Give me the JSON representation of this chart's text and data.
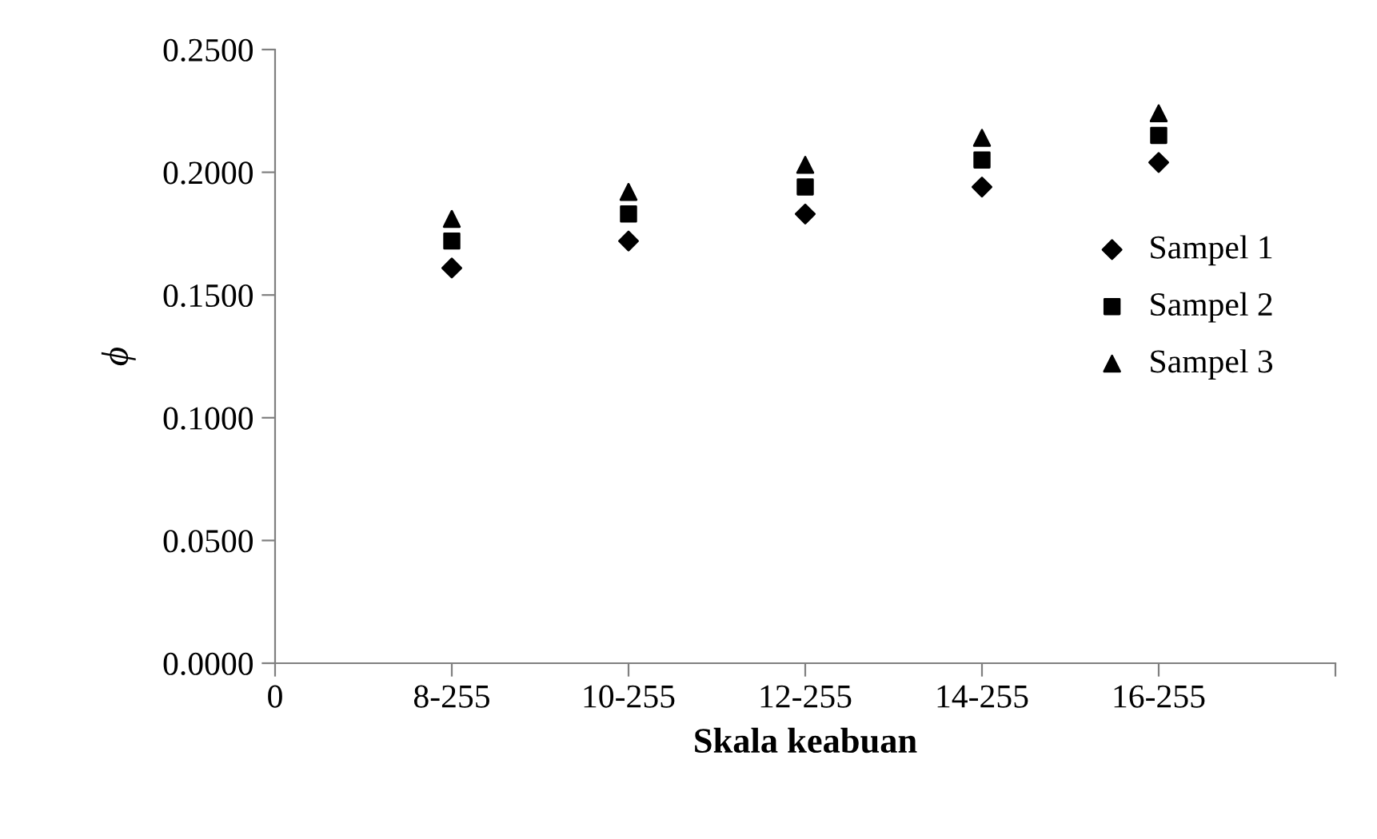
{
  "chart_data": {
    "type": "scatter",
    "xlabel": "Skala keabuan",
    "ylabel": "ϕ",
    "categories": [
      "0",
      "8-255",
      "10-255",
      "12-255",
      "14-255",
      "16-255",
      null
    ],
    "series": [
      {
        "name": "Sampel 1",
        "color": "#000000",
        "marker": "diamond",
        "values": [
          null,
          0.161,
          0.172,
          0.183,
          0.194,
          0.204,
          null
        ]
      },
      {
        "name": "Sampel 2",
        "color": "#000000",
        "marker": "square",
        "values": [
          null,
          0.172,
          0.183,
          0.194,
          0.205,
          0.215,
          null
        ]
      },
      {
        "name": "Sampel 3",
        "color": "#000000",
        "marker": "triangle",
        "values": [
          null,
          0.181,
          0.192,
          0.203,
          0.214,
          0.224,
          null
        ]
      }
    ],
    "ylim": [
      0,
      0.25
    ],
    "yticks": [
      {
        "value": 0,
        "label": "0.0000"
      },
      {
        "value": 0.05,
        "label": "0.0500"
      },
      {
        "value": 0.1,
        "label": "0.1000"
      },
      {
        "value": 0.15,
        "label": "0.1500"
      },
      {
        "value": 0.2,
        "label": "0.2000"
      },
      {
        "value": 0.25,
        "label": "0.2500"
      }
    ],
    "grid": false,
    "legend": "right"
  }
}
